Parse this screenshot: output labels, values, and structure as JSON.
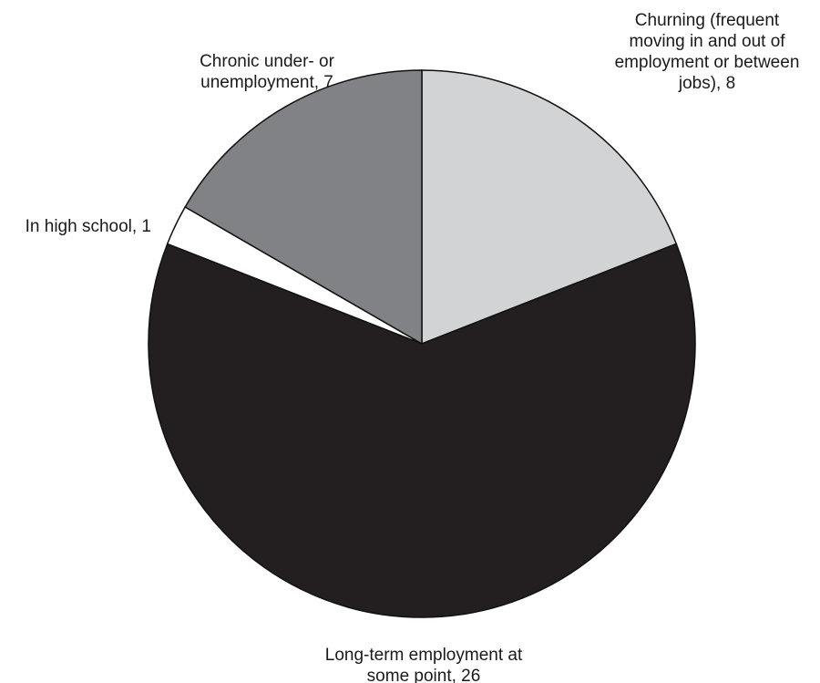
{
  "chart_data": {
    "type": "pie",
    "start_angle_deg": 90,
    "direction": "clockwise",
    "slices": [
      {
        "label": [
          "Churning (frequent",
          "moving in and out of",
          "employment or between",
          "jobs), 8"
        ],
        "value": 8,
        "color": "#d2d3d5"
      },
      {
        "label": [
          "Long-term employment at",
          "some point, 26"
        ],
        "value": 26,
        "color": "#231f20"
      },
      {
        "label": [
          "In high school, 1"
        ],
        "value": 1,
        "color": "#ffffff"
      },
      {
        "label": [
          "Chronic under- or",
          "unemployment, 7"
        ],
        "value": 7,
        "color": "#808285"
      }
    ],
    "legend": "none"
  }
}
